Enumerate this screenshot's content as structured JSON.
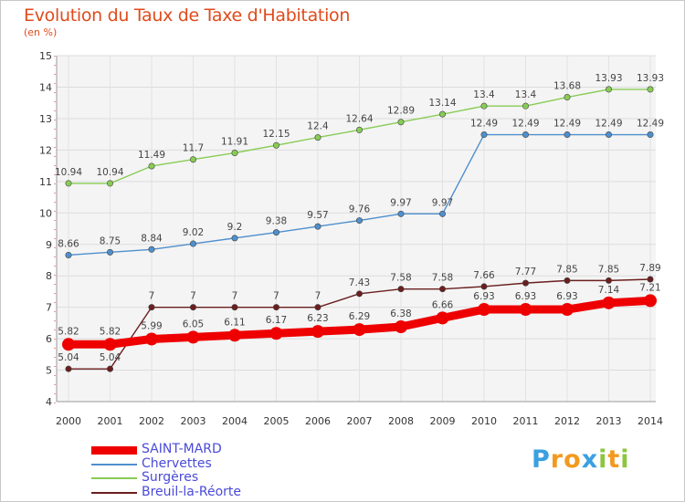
{
  "chart_data": {
    "type": "line",
    "title": "Evolution du Taux de Taxe d'Habitation",
    "subtitle": "(en %)",
    "xlabel": "",
    "ylabel": "",
    "ylim": [
      4,
      15
    ],
    "yticks": [
      "4",
      "5",
      "6",
      "7",
      "8",
      "9",
      "10",
      "11",
      "12",
      "13",
      "14",
      "15"
    ],
    "grid": true,
    "legend_position": "bottom-left",
    "categories": [
      "2000",
      "2001",
      "2002",
      "2003",
      "2004",
      "2005",
      "2006",
      "2007",
      "2008",
      "2009",
      "2010",
      "2011",
      "2012",
      "2013",
      "2014"
    ],
    "series": [
      {
        "name": "Surgères",
        "color": "#88cc55",
        "values": [
          10.94,
          10.94,
          11.49,
          11.7,
          11.91,
          12.15,
          12.4,
          12.64,
          12.89,
          13.14,
          13.4,
          13.4,
          13.68,
          13.93,
          13.93
        ],
        "labels": [
          "10.94",
          "10.94",
          "11.49",
          "11.7",
          "11.91",
          "12.15",
          "12.4",
          "12.64",
          "12.89",
          "13.14",
          "13.4",
          "13.4",
          "13.68",
          "13.93",
          "13.93"
        ]
      },
      {
        "name": "Chervettes",
        "color": "#4f8fcc",
        "values": [
          8.66,
          8.75,
          8.84,
          9.02,
          9.2,
          9.38,
          9.57,
          9.76,
          9.97,
          9.97,
          12.49,
          12.49,
          12.49,
          12.49,
          12.49
        ],
        "labels": [
          "8.66",
          "8.75",
          "8.84",
          "9.02",
          "9.2",
          "9.38",
          "9.57",
          "9.76",
          "9.97",
          "9.97",
          "12.49",
          "12.49",
          "12.49",
          "12.49",
          "12.49"
        ]
      },
      {
        "name": "Breuil-la-Réorte",
        "color": "#6b1e1e",
        "values": [
          5.04,
          5.04,
          7,
          7,
          7,
          7,
          7,
          7.43,
          7.58,
          7.58,
          7.66,
          7.77,
          7.85,
          7.85,
          7.89
        ],
        "labels": [
          "5.04",
          "5.04",
          "7",
          "7",
          "7",
          "7",
          "7",
          "7.43",
          "7.58",
          "7.58",
          "7.66",
          "7.77",
          "7.85",
          "7.85",
          "7.89"
        ]
      },
      {
        "name": "SAINT-MARD",
        "color": "#ee0000",
        "values": [
          5.82,
          5.82,
          5.99,
          6.05,
          6.11,
          6.17,
          6.23,
          6.29,
          6.38,
          6.66,
          6.93,
          6.93,
          6.93,
          7.14,
          7.21
        ],
        "labels": [
          "5.82",
          "5.82",
          "5.99",
          "6.05",
          "6.11",
          "6.17",
          "6.23",
          "6.29",
          "6.38",
          "6.66",
          "6.93",
          "6.93",
          "6.93",
          "7.14",
          "7.21"
        ]
      }
    ]
  },
  "legend": [
    {
      "name": "SAINT-MARD",
      "color": "#ee0000",
      "thick": true
    },
    {
      "name": "Chervettes",
      "color": "#4f8fcc",
      "thick": false
    },
    {
      "name": "Surgères",
      "color": "#88cc55",
      "thick": false
    },
    {
      "name": "Breuil-la-Réorte",
      "color": "#6b1e1e",
      "thick": false
    }
  ],
  "logo": {
    "text": "Proxiti",
    "letters": [
      {
        "ch": "P",
        "color": "#3aa0e0"
      },
      {
        "ch": "r",
        "color": "#f29a1f"
      },
      {
        "ch": "o",
        "color": "#f29a1f"
      },
      {
        "ch": "x",
        "color": "#3aa0e0"
      },
      {
        "ch": "i",
        "color": "#8cc63f"
      },
      {
        "ch": "t",
        "color": "#f29a1f"
      },
      {
        "ch": "i",
        "color": "#8cc63f"
      }
    ]
  }
}
